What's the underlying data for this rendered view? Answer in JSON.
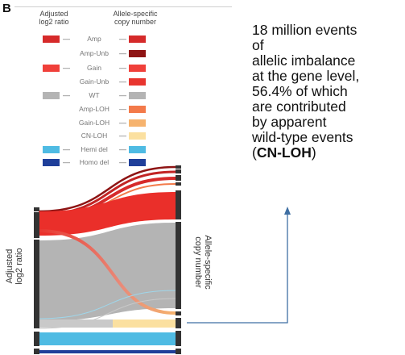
{
  "panel_letter": "B",
  "legend": {
    "left_header": [
      "Adjusted",
      "log2 ratio"
    ],
    "right_header": [
      "Allele-specific",
      "copy number"
    ],
    "rows": [
      {
        "label": "Amp",
        "left_color": "#d62a2a",
        "right_color": "#d52a2a"
      },
      {
        "label": "Amp-Unb",
        "left_color": null,
        "right_color": "#8e1414"
      },
      {
        "label": "Gain",
        "left_color": "#f0403a",
        "right_color": "#f0403a"
      },
      {
        "label": "Gain-Unb",
        "left_color": null,
        "right_color": "#e8352f"
      },
      {
        "label": "WT",
        "left_color": "#b4b4b4",
        "right_color": "#b4b4b4"
      },
      {
        "label": "Amp-LOH",
        "left_color": null,
        "right_color": "#f37a4a"
      },
      {
        "label": "Gain-LOH",
        "left_color": null,
        "right_color": "#f6b36e"
      },
      {
        "label": "CN-LOH",
        "left_color": null,
        "right_color": "#fbe0a0"
      },
      {
        "label": "Hemi del",
        "left_color": "#4fbbe3",
        "right_color": "#4fbbe3"
      },
      {
        "label": "Homo del",
        "left_color": "#1f3f9a",
        "right_color": "#1f3f9a"
      }
    ]
  },
  "axis_left_label": [
    "Adjusted",
    "log2 ratio"
  ],
  "axis_right_label": [
    "Allele-specific",
    "copy number"
  ],
  "callout": {
    "lines": [
      "18 million events",
      "of",
      "allelic imbalance",
      "at the gene level,",
      "56.4% of which",
      "are contributed",
      "by apparent",
      "wild-type events"
    ],
    "last_prefix": "(",
    "last_bold": "CN-LOH",
    "last_suffix": ")"
  },
  "arrow_color": "#3f6fa3"
}
